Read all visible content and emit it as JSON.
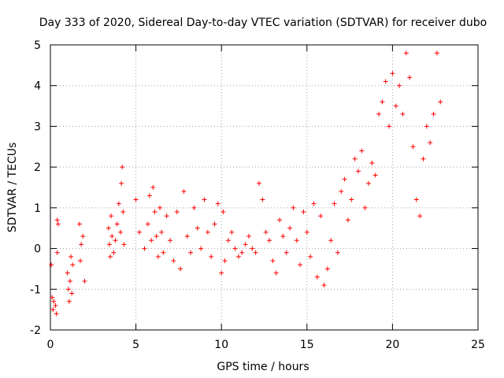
{
  "chart_data": {
    "type": "scatter",
    "title": "Day 333 of 2020, Sidereal Day-to-day VTEC variation (SDTVAR) for receiver dubo",
    "xlabel": "GPS time / hours",
    "ylabel": "SDTVAR / TECUs",
    "xlim": [
      0,
      25
    ],
    "ylim": [
      -2,
      5
    ],
    "xticks": [
      0,
      5,
      10,
      15,
      20,
      25
    ],
    "yticks": [
      -2,
      -1,
      0,
      1,
      2,
      3,
      4,
      5
    ],
    "grid": true,
    "marker": "plus",
    "color": "#ff0000",
    "series": [
      {
        "name": "SDTVAR",
        "x": [
          0.05,
          0.1,
          0.15,
          0.2,
          0.3,
          0.35,
          0.4,
          0.4,
          0.45,
          1.0,
          1.05,
          1.1,
          1.15,
          1.2,
          1.25,
          1.3,
          1.7,
          1.75,
          1.8,
          1.9,
          2.0,
          3.4,
          3.45,
          3.5,
          3.55,
          3.6,
          3.7,
          3.8,
          3.9,
          4.0,
          4.1,
          4.15,
          4.2,
          4.25,
          4.3,
          5.0,
          5.2,
          5.5,
          5.7,
          5.8,
          5.9,
          6.0,
          6.1,
          6.2,
          6.3,
          6.4,
          6.5,
          6.6,
          6.8,
          7.0,
          7.2,
          7.4,
          7.6,
          7.8,
          8.0,
          8.2,
          8.4,
          8.6,
          8.8,
          9.0,
          9.2,
          9.4,
          9.6,
          9.8,
          10.0,
          10.1,
          10.2,
          10.4,
          10.6,
          10.8,
          11.0,
          11.2,
          11.4,
          11.6,
          11.8,
          12.0,
          12.2,
          12.4,
          12.6,
          12.8,
          13.0,
          13.2,
          13.4,
          13.6,
          13.8,
          14.0,
          14.2,
          14.4,
          14.6,
          14.8,
          15.0,
          15.2,
          15.4,
          15.6,
          15.8,
          16.0,
          16.2,
          16.4,
          16.6,
          16.8,
          17.0,
          17.2,
          17.4,
          17.6,
          17.8,
          18.0,
          18.2,
          18.4,
          18.6,
          18.8,
          19.0,
          19.2,
          19.4,
          19.6,
          19.8,
          20.0,
          20.2,
          20.4,
          20.6,
          20.8,
          21.0,
          21.2,
          21.4,
          21.6,
          21.8,
          22.0,
          22.2,
          22.4,
          22.6,
          22.8
        ],
        "y": [
          -0.4,
          -1.2,
          -1.5,
          -1.3,
          -1.4,
          -1.6,
          0.7,
          -0.1,
          0.6,
          -0.6,
          -1.0,
          -1.3,
          -0.8,
          -0.2,
          -1.1,
          -0.4,
          0.6,
          -0.3,
          0.1,
          0.3,
          -0.8,
          0.5,
          0.1,
          -0.2,
          0.8,
          0.3,
          -0.1,
          0.2,
          0.6,
          1.1,
          0.4,
          1.6,
          2.0,
          0.9,
          0.1,
          1.2,
          0.4,
          0.0,
          0.6,
          1.3,
          0.2,
          1.5,
          0.9,
          0.3,
          -0.2,
          1.0,
          0.4,
          -0.1,
          0.8,
          0.2,
          -0.3,
          0.9,
          -0.5,
          1.4,
          0.3,
          -0.1,
          1.0,
          0.5,
          0.0,
          1.2,
          0.4,
          -0.2,
          0.6,
          1.1,
          -0.6,
          0.9,
          -0.3,
          0.2,
          0.4,
          0.0,
          -0.2,
          -0.1,
          0.1,
          0.3,
          0.0,
          -0.1,
          1.6,
          1.2,
          0.4,
          0.2,
          -0.3,
          -0.6,
          0.7,
          0.3,
          -0.1,
          0.5,
          1.0,
          0.2,
          -0.4,
          0.9,
          0.4,
          -0.2,
          1.1,
          -0.7,
          0.8,
          -0.9,
          -0.5,
          0.2,
          1.1,
          -0.1,
          1.4,
          1.7,
          0.7,
          1.2,
          2.2,
          1.9,
          2.4,
          1.0,
          1.6,
          2.1,
          1.8,
          3.3,
          3.6,
          4.1,
          3.0,
          4.3,
          3.5,
          4.0,
          3.3,
          4.8,
          4.2,
          2.5,
          1.2,
          0.8,
          2.2,
          3.0,
          2.6,
          3.3,
          4.8,
          3.6
        ]
      }
    ]
  }
}
